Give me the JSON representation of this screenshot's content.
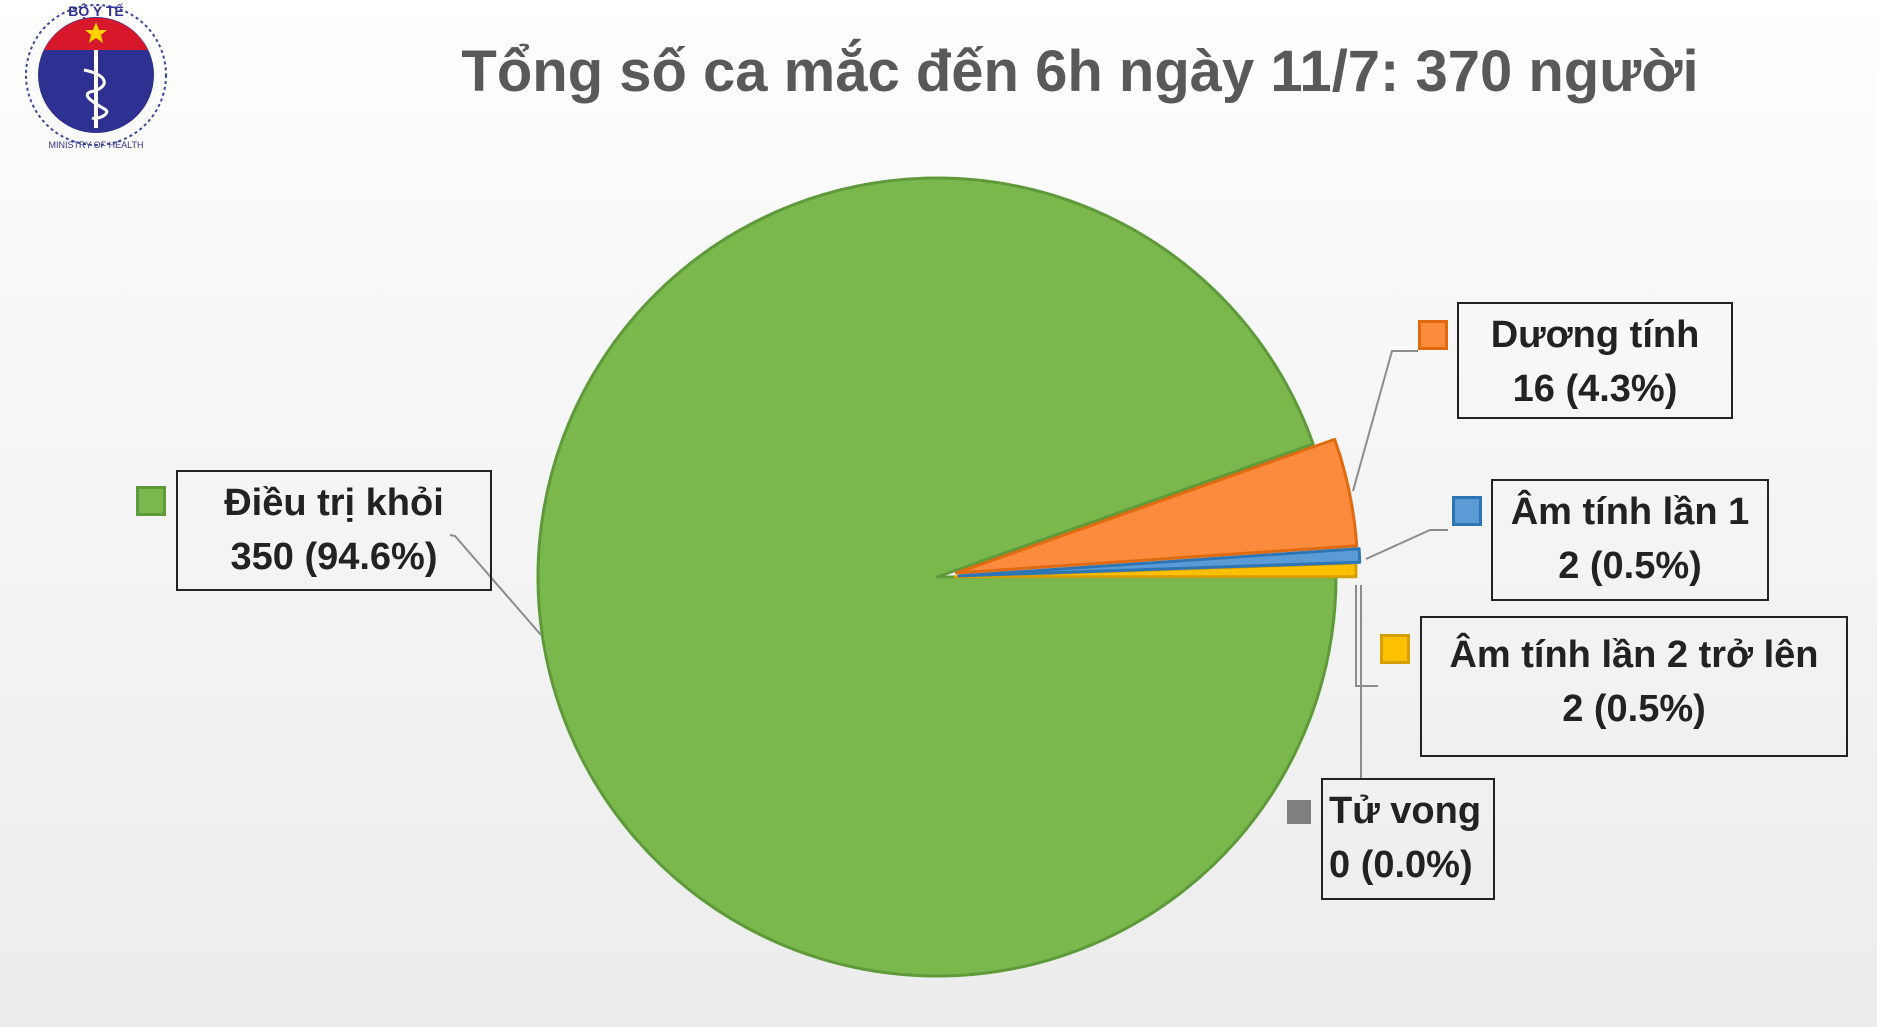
{
  "logo": {
    "top_text": "BỘ Y TẾ",
    "bottom_text": "MINISTRY OF HEALTH"
  },
  "chart_data": {
    "type": "pie",
    "title": "Tổng số ca mắc đến 6h ngày 11/7: 370 người",
    "slices": [
      {
        "name": "Âm tính lần 2 trở lên",
        "value": 2,
        "percent": "0.5%",
        "color": "#ffc000",
        "border": "#d4a000",
        "label_value": "2 (0.5%)"
      },
      {
        "name": "Âm tính lần 1",
        "value": 2,
        "percent": "0.5%",
        "color": "#5b9bd5",
        "border": "#2e75b6",
        "label_value": "2 (0.5%)"
      },
      {
        "name": "Dương tính",
        "value": 16,
        "percent": "4.3%",
        "color": "#fd8b3d",
        "border": "#e06a10",
        "label_value": "16 (4.3%)"
      },
      {
        "name": "Điều trị khỏi",
        "value": 350,
        "percent": "94.6%",
        "color": "#7ab84e",
        "border": "#5e9a3a",
        "label_value": "350 (94.6%)"
      },
      {
        "name": "Tử vong",
        "value": 0,
        "percent": "0.0%",
        "color": "#7f7f7f",
        "border": "#7f7f7f",
        "label_value": "0 (0.0%)"
      }
    ]
  }
}
